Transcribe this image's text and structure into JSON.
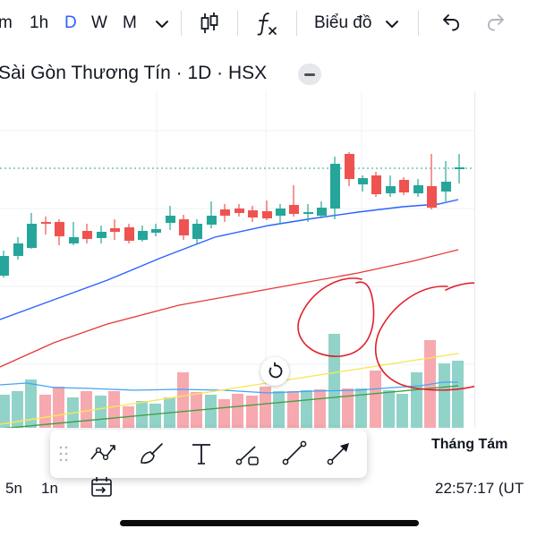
{
  "toolbar": {
    "intervals": [
      {
        "label": "m",
        "active": false
      },
      {
        "label": "1h",
        "active": false
      },
      {
        "label": "D",
        "active": true
      },
      {
        "label": "W",
        "active": false
      },
      {
        "label": "M",
        "active": false
      }
    ],
    "chart_type_label": "Biểu đồ"
  },
  "symbol": {
    "title": "Sài Gòn Thương Tín · 1D · HSX"
  },
  "xaxis": {
    "month_label": "Tháng Tám"
  },
  "bottom": {
    "ranges": [
      "5n",
      "1n"
    ],
    "clock": "22:57:17 (UT"
  },
  "colors": {
    "up": "#26a69a",
    "down": "#ef5350",
    "up_volume": "#92d3c9",
    "down_volume": "#f7a9b0",
    "ma_blue": "#2962ff",
    "ma_red": "#e53935",
    "vol_ma_blue": "#42a5f5",
    "vol_ma_yellow": "#f9e65a",
    "vol_ma_green": "#43a047",
    "annotation": "#e0202a",
    "active": "#2962ff"
  },
  "icons": {
    "interval_menu": "chevron-down-icon",
    "candles": "candlestick-icon",
    "indicators": "function-fx-icon",
    "chart_type_menu": "chevron-down-icon",
    "undo": "undo-icon",
    "redo": "redo-icon",
    "collapse": "minus-icon",
    "reset": "reset-icon",
    "goto": "go-to-date-icon",
    "drawing_tools": [
      "trend-angle-icon",
      "brush-icon",
      "text-icon",
      "curve-icon",
      "trend-line-icon",
      "arrow-icon"
    ]
  }
}
